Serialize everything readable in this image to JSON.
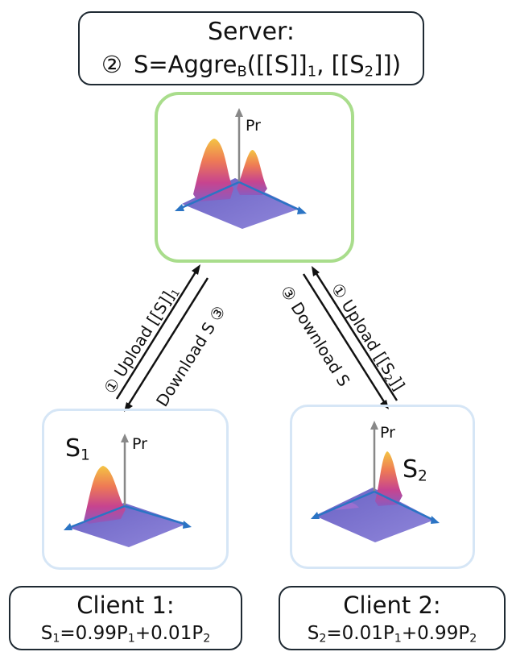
{
  "server": {
    "title": "Server:",
    "step": "②",
    "formula_pre": "S=Aggre",
    "formula_sub": "B",
    "formula_mid1": "([[S]]",
    "formula_sub1": "1",
    "formula_mid2": ", [[S",
    "formula_sub2": "2",
    "formula_end": "]])"
  },
  "plots": {
    "axis_label": "Pr",
    "s1_label": "S",
    "s1_sub": "1",
    "s2_label": "S",
    "s2_sub": "2"
  },
  "arrows": {
    "left_upload": "① Upload [[S]]",
    "left_upload_sub": "1",
    "left_download": "Download S ③",
    "right_download": "③ Download S",
    "right_upload": "① Upload [[S",
    "right_upload_sub": "2",
    "right_upload_end": "]]"
  },
  "client1": {
    "title": "Client 1:",
    "f_s": "S",
    "f_s_sub": "1",
    "f_eq": "=0.99P",
    "f_p1_sub": "1",
    "f_plus": "+0.01P",
    "f_p2_sub": "2"
  },
  "client2": {
    "title": "Client 2:",
    "f_s": "S",
    "f_s_sub": "2",
    "f_eq": "=0.01P",
    "f_p1_sub": "1",
    "f_plus": "+0.99P",
    "f_p2_sub": "2"
  },
  "colors": {
    "frame_green": "#a9dd8c",
    "frame_blue": "#d6e6f6",
    "axis_blue": "#2b74c4",
    "axis_gray": "#888888",
    "surface_purple": "#7a6cc8"
  }
}
